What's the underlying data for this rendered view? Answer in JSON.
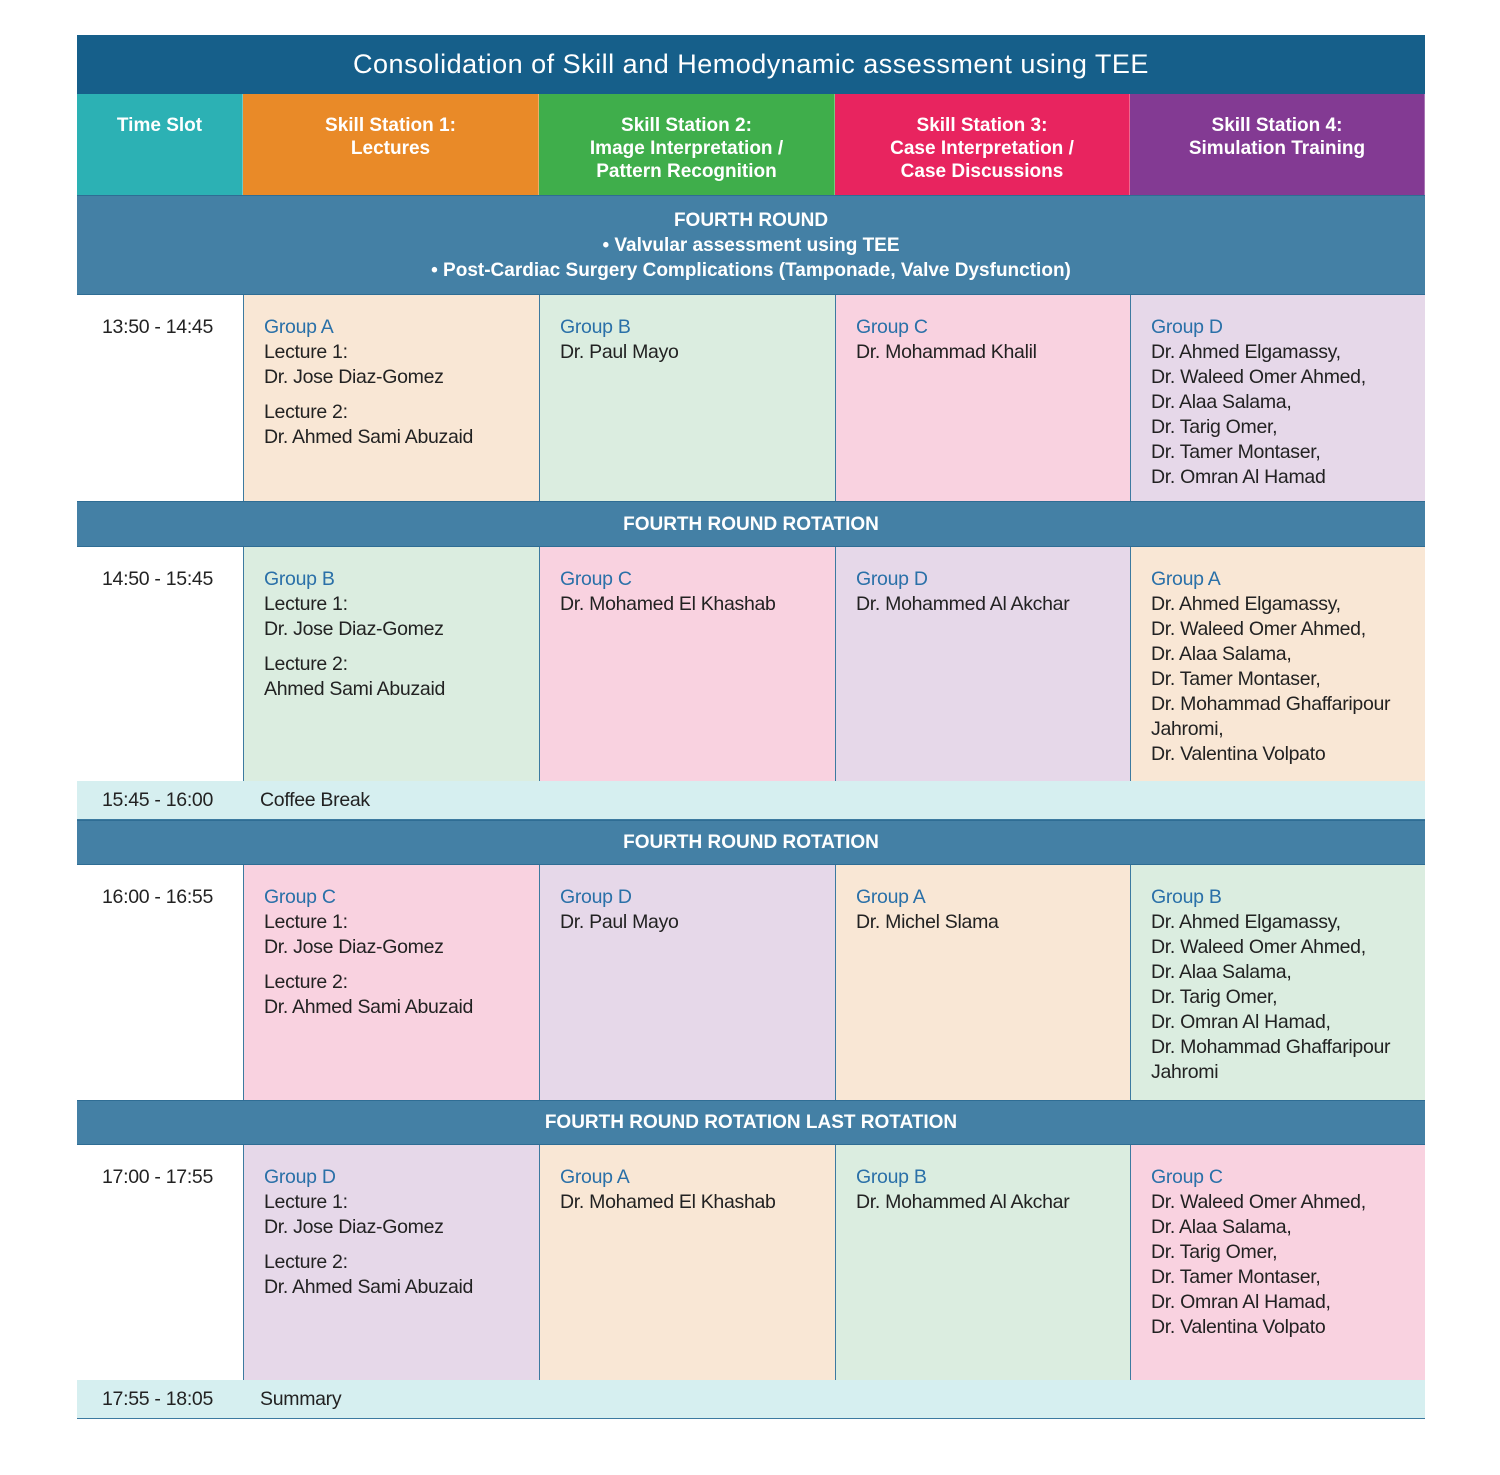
{
  "title": "Consolidation of Skill and Hemodynamic assessment using TEE",
  "colors": {
    "title_bg": "#165f8a",
    "section_bg": "#4480a5",
    "break_bg": "#d6eff0",
    "group_text": "#2a70a8"
  },
  "headers": [
    {
      "label": "Time Slot",
      "color": "#2cb1b4"
    },
    {
      "label": "Skill Station 1:\nLectures",
      "color": "#e98a28"
    },
    {
      "label": "Skill Station 2:\nImage Interpretation /\nPattern Recognition",
      "color": "#3fae4b"
    },
    {
      "label": "Skill Station 3:\nCase Interpretation /\nCase Discussions",
      "color": "#e8245f"
    },
    {
      "label": "Skill Station 4:\nSimulation Training",
      "color": "#833a93"
    }
  ],
  "group_colors": {
    "Group A": "#f9e7d5",
    "Group B": "#dbede0",
    "Group C": "#f9d2e0",
    "Group D": "#e6d8e9"
  },
  "blocks": [
    {
      "kind": "section",
      "lines": [
        "FOURTH ROUND",
        "• Valvular assessment using TEE",
        "• Post-Cardiac Surgery Complications (Tamponade, Valve Dysfunction)"
      ]
    },
    {
      "kind": "slot",
      "time": "13:50 - 14:45",
      "cells": [
        {
          "group": "Group A",
          "lecture": true,
          "lines": [
            "Lecture 1:",
            "Dr. Jose Diaz-Gomez"
          ],
          "lines2": [
            "Lecture 2:",
            "Dr. Ahmed Sami Abuzaid"
          ]
        },
        {
          "group": "Group B",
          "lines": [
            "Dr. Paul Mayo"
          ]
        },
        {
          "group": "Group C",
          "lines": [
            "Dr. Mohammad Khalil"
          ]
        },
        {
          "group": "Group D",
          "lines": [
            "Dr. Ahmed Elgamassy,",
            "Dr. Waleed Omer Ahmed,",
            "Dr. Alaa Salama,",
            "Dr. Tarig Omer,",
            "Dr. Tamer Montaser,",
            "Dr. Omran Al Hamad"
          ]
        }
      ]
    },
    {
      "kind": "section",
      "lines": [
        "FOURTH ROUND ROTATION"
      ]
    },
    {
      "kind": "slot",
      "time": "14:50 - 15:45",
      "cells": [
        {
          "group": "Group B",
          "lecture": true,
          "lines": [
            "Lecture 1:",
            "Dr. Jose Diaz-Gomez"
          ],
          "lines2": [
            "Lecture 2:",
            "Ahmed Sami Abuzaid"
          ]
        },
        {
          "group": "Group C",
          "lines": [
            "Dr. Mohamed El Khashab"
          ]
        },
        {
          "group": "Group D",
          "lines": [
            "Dr. Mohammed Al Akchar"
          ]
        },
        {
          "group": "Group A",
          "lines": [
            "Dr. Ahmed Elgamassy,",
            "Dr. Waleed Omer Ahmed,",
            "Dr. Alaa Salama,",
            "Dr. Tamer Montaser,",
            "Dr. Mohammad Ghaffaripour",
            "Jahromi,",
            "Dr. Valentina Volpato"
          ]
        }
      ]
    },
    {
      "kind": "break",
      "time": "15:45 - 16:00",
      "label": "Coffee Break"
    },
    {
      "kind": "section",
      "lines": [
        "FOURTH ROUND ROTATION"
      ]
    },
    {
      "kind": "slot",
      "time": "16:00 - 16:55",
      "cells": [
        {
          "group": "Group C",
          "lecture": true,
          "lines": [
            "Lecture 1:",
            "Dr. Jose Diaz-Gomez"
          ],
          "lines2": [
            "Lecture 2:",
            "Dr. Ahmed Sami Abuzaid"
          ]
        },
        {
          "group": "Group D",
          "lines": [
            "Dr. Paul Mayo"
          ]
        },
        {
          "group": "Group A",
          "lines": [
            "Dr. Michel Slama"
          ]
        },
        {
          "group": "Group B",
          "lines": [
            "Dr. Ahmed Elgamassy,",
            "Dr. Waleed Omer Ahmed,",
            "Dr. Alaa Salama,",
            "Dr. Tarig Omer,",
            "Dr. Omran Al Hamad,",
            "Dr. Mohammad Ghaffaripour",
            "Jahromi"
          ]
        }
      ]
    },
    {
      "kind": "section",
      "lines": [
        "FOURTH ROUND ROTATION LAST ROTATION"
      ]
    },
    {
      "kind": "slot",
      "time": "17:00 - 17:55",
      "cells": [
        {
          "group": "Group D",
          "lecture": true,
          "lines": [
            "Lecture 1:",
            "Dr. Jose Diaz-Gomez"
          ],
          "lines2": [
            "Lecture 2:",
            "Dr. Ahmed Sami Abuzaid"
          ]
        },
        {
          "group": "Group A",
          "lines": [
            "Dr. Mohamed El Khashab"
          ]
        },
        {
          "group": "Group B",
          "lines": [
            "Dr. Mohammed Al Akchar"
          ]
        },
        {
          "group": "Group C",
          "lines": [
            "Dr. Waleed Omer Ahmed,",
            "Dr. Alaa Salama,",
            "Dr. Tarig Omer,",
            "Dr. Tamer Montaser,",
            "Dr. Omran Al Hamad,",
            "Dr. Valentina Volpato"
          ]
        }
      ]
    },
    {
      "kind": "break",
      "time": "17:55 - 18:05",
      "label": "Summary"
    }
  ]
}
